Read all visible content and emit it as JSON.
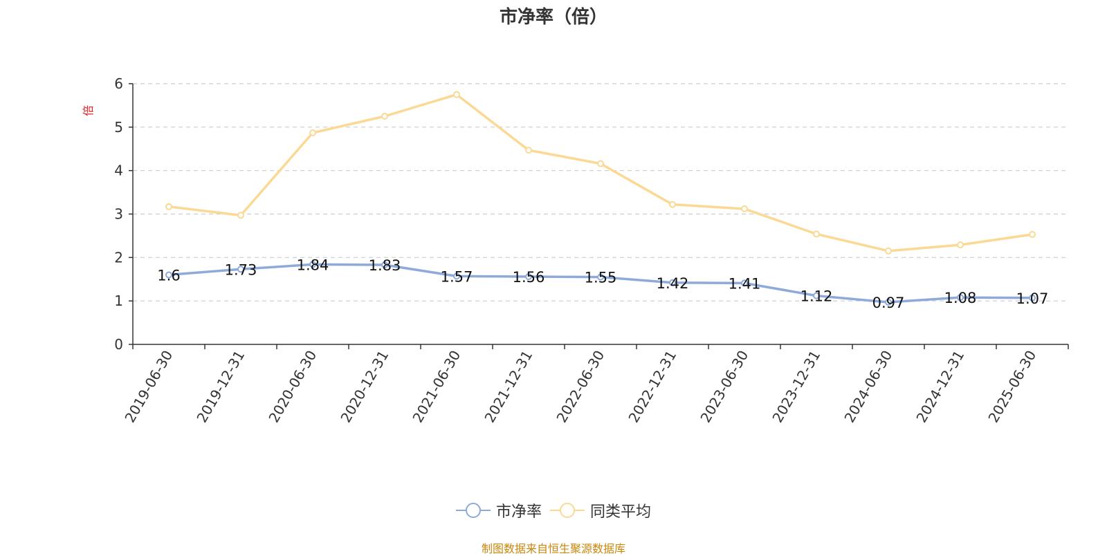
{
  "chart_data": {
    "type": "line",
    "title": "市净率（倍）",
    "ylabel": "倍",
    "ylim": [
      0,
      6
    ],
    "yticks": [
      0,
      1,
      2,
      3,
      4,
      5,
      6
    ],
    "grid": true,
    "legend_position": "bottom",
    "categories": [
      "2019-06-30",
      "2019-12-31",
      "2020-06-30",
      "2020-12-31",
      "2021-06-30",
      "2021-12-31",
      "2022-06-30",
      "2022-12-31",
      "2023-06-30",
      "2023-12-31",
      "2024-06-30",
      "2024-12-31",
      "2025-06-30"
    ],
    "series": [
      {
        "name": "市净率",
        "color": "#8eaadb",
        "show_labels": true,
        "values": [
          1.6,
          1.73,
          1.84,
          1.83,
          1.57,
          1.56,
          1.55,
          1.42,
          1.41,
          1.12,
          0.97,
          1.08,
          1.07
        ]
      },
      {
        "name": "同类平均",
        "color": "#fbd994",
        "show_labels": false,
        "values": [
          3.17,
          2.97,
          4.87,
          5.25,
          5.75,
          4.47,
          4.16,
          3.22,
          3.12,
          2.54,
          2.15,
          2.29,
          2.53
        ]
      }
    ],
    "y_unit_color": "#e02020"
  },
  "footer": "制图数据来自恒生聚源数据库"
}
